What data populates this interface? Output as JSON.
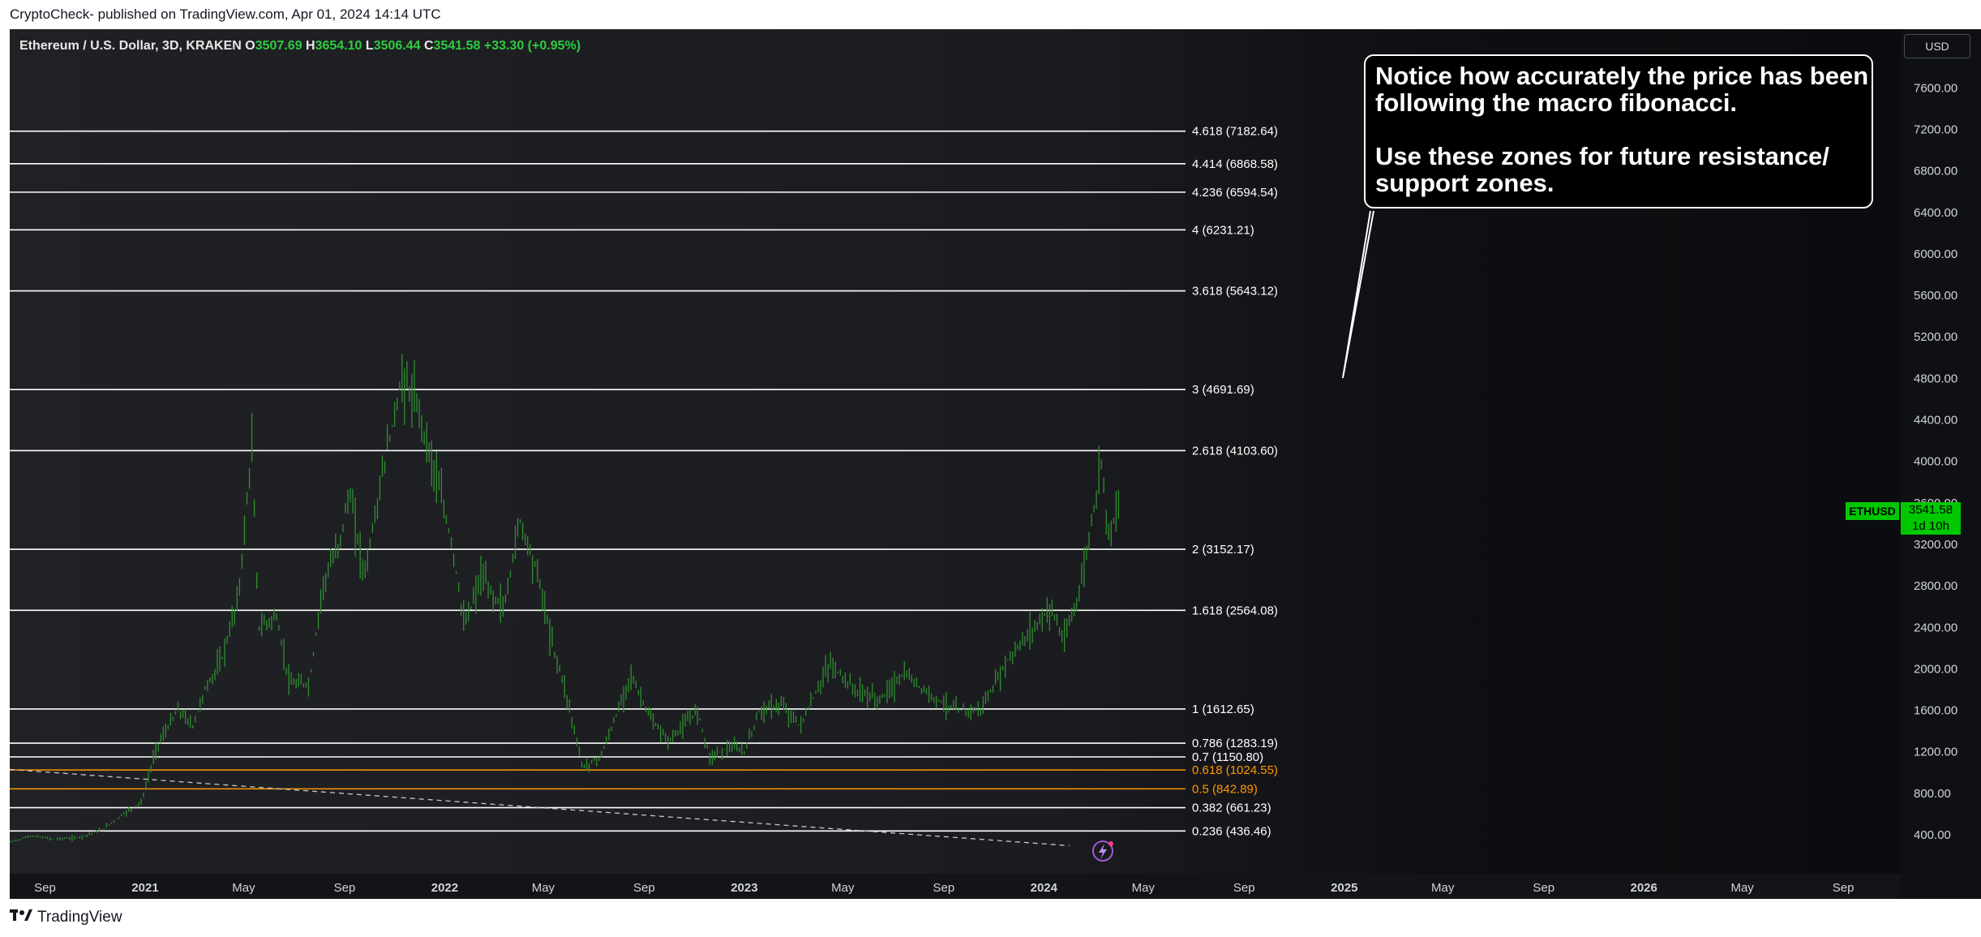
{
  "header": {
    "attribution": "CryptoCheck- published on TradingView.com, Apr 01, 2024 14:14 UTC"
  },
  "legend": {
    "symbol": "Ethereum / U.S. Dollar, 3D, KRAKEN",
    "open_label": "O",
    "open": "3507.69",
    "high_label": "H",
    "high": "3654.10",
    "low_label": "L",
    "low": "3506.44",
    "close_label": "C",
    "close": "3541.58",
    "change": "+33.30 (+0.95%)"
  },
  "note": {
    "line1": "Notice how accurately the price has been following the macro fibonacci.",
    "line2": "Use these zones for future resistance/ support zones."
  },
  "price_axis": {
    "currency": "USD",
    "ticks": [
      "400.00",
      "800.00",
      "1200.00",
      "1600.00",
      "2000.00",
      "2400.00",
      "2800.00",
      "3200.00",
      "3600.00",
      "4000.00",
      "4400.00",
      "4800.00",
      "5200.00",
      "5600.00",
      "6000.00",
      "6400.00",
      "6800.00",
      "7200.00",
      "7600.00"
    ],
    "last_price_tag": {
      "symbol": "ETHUSD",
      "price": "3541.58",
      "countdown": "1d 10h",
      "color": "#00c800"
    }
  },
  "footer": {
    "brand": "TradingView"
  },
  "colors": {
    "candle": "#2a8a2a",
    "fib_line": "#ffffff",
    "fib_orange": "#ff9800",
    "background": "#1b1c20"
  },
  "icons": {
    "alert": "lightning-icon",
    "logo": "tradingview-logo-icon"
  },
  "chart_data": {
    "type": "line",
    "title": "Ethereum / U.S. Dollar, 3D, KRAKEN",
    "x_axis": {
      "type": "date",
      "range": [
        "2020-07-20",
        "2026-11-10"
      ],
      "ticks": [
        {
          "label": "Sep",
          "date": "2020-09-01"
        },
        {
          "label": "2021",
          "date": "2021-01-01"
        },
        {
          "label": "May",
          "date": "2021-05-01"
        },
        {
          "label": "Sep",
          "date": "2021-09-01"
        },
        {
          "label": "2022",
          "date": "2022-01-01"
        },
        {
          "label": "May",
          "date": "2022-05-01"
        },
        {
          "label": "Sep",
          "date": "2022-09-01"
        },
        {
          "label": "2023",
          "date": "2023-01-01"
        },
        {
          "label": "May",
          "date": "2023-05-01"
        },
        {
          "label": "Sep",
          "date": "2023-09-01"
        },
        {
          "label": "2024",
          "date": "2024-01-01"
        },
        {
          "label": "May",
          "date": "2024-05-01"
        },
        {
          "label": "Sep",
          "date": "2024-09-01"
        },
        {
          "label": "2025",
          "date": "2025-01-01"
        },
        {
          "label": "May",
          "date": "2025-05-01"
        },
        {
          "label": "Sep",
          "date": "2025-09-01"
        },
        {
          "label": "2026",
          "date": "2026-01-01"
        },
        {
          "label": "May",
          "date": "2026-05-01"
        },
        {
          "label": "Sep",
          "date": "2026-09-01"
        }
      ]
    },
    "y_axis": {
      "range": [
        300,
        7850
      ],
      "label": "USD"
    },
    "grid": false,
    "series": [
      {
        "name": "ETHUSD",
        "points": [
          [
            "2020-07-21",
            330
          ],
          [
            "2020-08-15",
            390
          ],
          [
            "2020-09-10",
            360
          ],
          [
            "2020-10-10",
            370
          ],
          [
            "2020-11-10",
            450
          ],
          [
            "2020-12-05",
            600
          ],
          [
            "2020-12-28",
            720
          ],
          [
            "2021-01-15",
            1250
          ],
          [
            "2021-02-10",
            1600
          ],
          [
            "2021-02-28",
            1450
          ],
          [
            "2021-03-15",
            1800
          ],
          [
            "2021-04-05",
            2100
          ],
          [
            "2021-04-25",
            2700
          ],
          [
            "2021-05-11",
            4150
          ],
          [
            "2021-05-19",
            2400
          ],
          [
            "2021-06-10",
            2500
          ],
          [
            "2021-06-26",
            1850
          ],
          [
            "2021-07-20",
            1850
          ],
          [
            "2021-08-05",
            2800
          ],
          [
            "2021-08-25",
            3200
          ],
          [
            "2021-09-07",
            3700
          ],
          [
            "2021-09-25",
            2900
          ],
          [
            "2021-10-20",
            4000
          ],
          [
            "2021-11-10",
            4800
          ],
          [
            "2021-11-30",
            4500
          ],
          [
            "2021-12-20",
            3900
          ],
          [
            "2022-01-10",
            3200
          ],
          [
            "2022-01-25",
            2400
          ],
          [
            "2022-02-15",
            2900
          ],
          [
            "2022-02-28",
            2700
          ],
          [
            "2022-03-15",
            2600
          ],
          [
            "2022-04-02",
            3450
          ],
          [
            "2022-04-25",
            2900
          ],
          [
            "2022-05-10",
            2300
          ],
          [
            "2022-05-28",
            1800
          ],
          [
            "2022-06-18",
            1050
          ],
          [
            "2022-07-10",
            1150
          ],
          [
            "2022-08-05",
            1700
          ],
          [
            "2022-08-15",
            1950
          ],
          [
            "2022-09-10",
            1500
          ],
          [
            "2022-10-01",
            1300
          ],
          [
            "2022-11-05",
            1600
          ],
          [
            "2022-11-20",
            1150
          ],
          [
            "2022-12-15",
            1250
          ],
          [
            "2023-01-01",
            1200
          ],
          [
            "2023-01-20",
            1600
          ],
          [
            "2023-02-15",
            1650
          ],
          [
            "2023-03-10",
            1450
          ],
          [
            "2023-04-15",
            2050
          ],
          [
            "2023-05-15",
            1800
          ],
          [
            "2023-06-15",
            1700
          ],
          [
            "2023-07-15",
            1950
          ],
          [
            "2023-08-15",
            1750
          ],
          [
            "2023-09-15",
            1600
          ],
          [
            "2023-10-15",
            1600
          ],
          [
            "2023-10-30",
            1800
          ],
          [
            "2023-11-15",
            2050
          ],
          [
            "2023-12-10",
            2300
          ],
          [
            "2024-01-10",
            2600
          ],
          [
            "2024-01-25",
            2250
          ],
          [
            "2024-02-15",
            2800
          ],
          [
            "2024-03-05",
            3700
          ],
          [
            "2024-03-12",
            4050
          ],
          [
            "2024-03-19",
            3300
          ],
          [
            "2024-04-01",
            3541.58
          ]
        ]
      }
    ],
    "fib_levels": [
      {
        "ratio": "0.236",
        "value": 436.46,
        "color": "#ffffff"
      },
      {
        "ratio": "0.382",
        "value": 661.23,
        "color": "#ffffff"
      },
      {
        "ratio": "0.5",
        "value": 842.89,
        "color": "#ff9800"
      },
      {
        "ratio": "0.618",
        "value": 1024.55,
        "color": "#ff9800"
      },
      {
        "ratio": "0.7",
        "value": 1150.8,
        "color": "#ffffff"
      },
      {
        "ratio": "0.786",
        "value": 1283.19,
        "color": "#ffffff"
      },
      {
        "ratio": "1",
        "value": 1612.65,
        "color": "#ffffff"
      },
      {
        "ratio": "1.618",
        "value": 2564.08,
        "color": "#ffffff"
      },
      {
        "ratio": "2",
        "value": 3152.17,
        "color": "#ffffff"
      },
      {
        "ratio": "2.618",
        "value": 4103.6,
        "color": "#ffffff"
      },
      {
        "ratio": "3",
        "value": 4691.69,
        "color": "#ffffff"
      },
      {
        "ratio": "3.618",
        "value": 5643.12,
        "color": "#ffffff"
      },
      {
        "ratio": "4",
        "value": 6231.21,
        "color": "#ffffff"
      },
      {
        "ratio": "4.236",
        "value": 6594.54,
        "color": "#ffffff"
      },
      {
        "ratio": "4.414",
        "value": 6868.58,
        "color": "#ffffff"
      },
      {
        "ratio": "4.618",
        "value": 7182.64,
        "color": "#ffffff"
      }
    ],
    "trendline": {
      "style": "dashed",
      "from": [
        "2020-07-20",
        1030
      ],
      "to": [
        "2024-02-01",
        295
      ]
    },
    "fib_end_date": "2024-03-23"
  }
}
